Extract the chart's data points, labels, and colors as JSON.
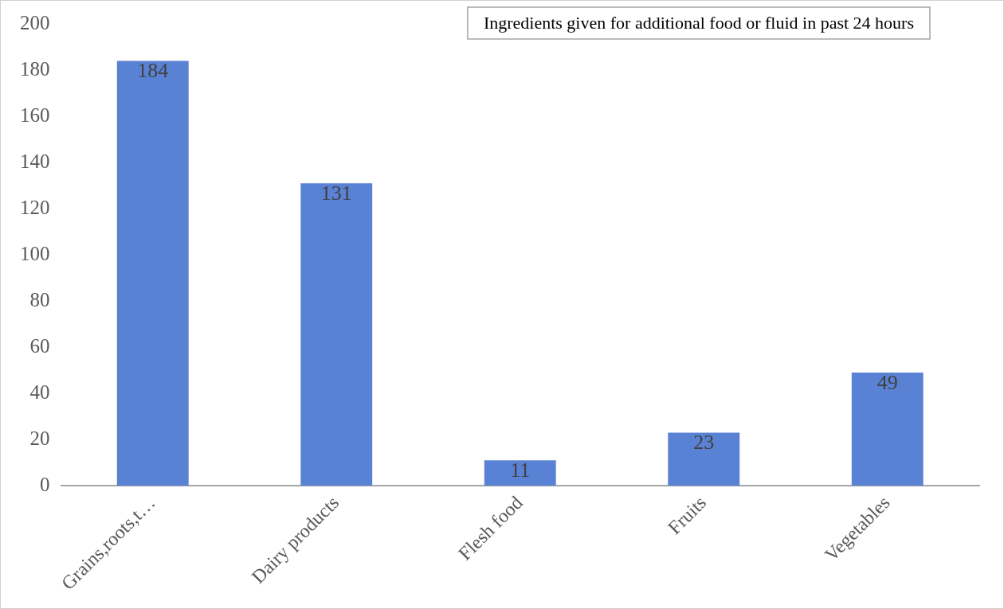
{
  "chart_data": {
    "type": "bar",
    "title": "Ingredients given for additional food or fluid in past 24 hours",
    "categories": [
      "Grains,roots,t…",
      "Dairy products",
      "Flesh food",
      "Fruits",
      "Vegetables"
    ],
    "values": [
      184,
      131,
      11,
      23,
      49
    ],
    "color": "#5a82d4",
    "ylim": [
      0,
      200
    ],
    "yticks": [
      0,
      20,
      40,
      60,
      80,
      100,
      120,
      140,
      160,
      180,
      200
    ],
    "grid": false,
    "legend": false,
    "data_labels": true
  }
}
